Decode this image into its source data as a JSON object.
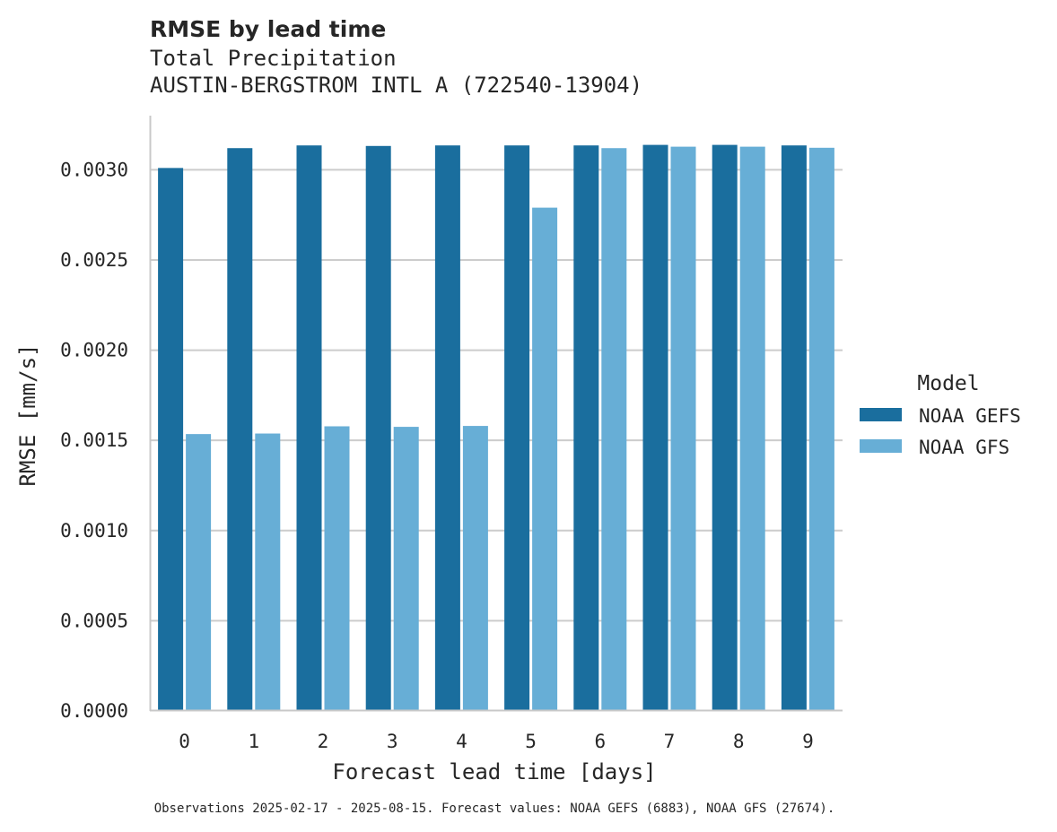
{
  "chart_data": {
    "type": "bar",
    "title": "RMSE by lead time",
    "subtitle_lines": [
      "Total Precipitation",
      "AUSTIN-BERGSTROM INTL A (722540-13904)"
    ],
    "xlabel": "Forecast lead time [days]",
    "ylabel": "RMSE [mm/s]",
    "categories": [
      "0",
      "1",
      "2",
      "3",
      "4",
      "5",
      "6",
      "7",
      "8",
      "9"
    ],
    "series": [
      {
        "name": "NOAA GEFS",
        "color": "#1a6e9e",
        "values": [
          0.00301,
          0.00312,
          0.003135,
          0.003132,
          0.003135,
          0.003135,
          0.003135,
          0.003138,
          0.003138,
          0.003135
        ]
      },
      {
        "name": "NOAA GFS",
        "color": "#67aed6",
        "values": [
          0.001535,
          0.001538,
          0.001578,
          0.001575,
          0.00158,
          0.00279,
          0.00312,
          0.003128,
          0.003128,
          0.003122
        ]
      }
    ],
    "ylim": [
      0,
      0.0033
    ],
    "yticks": [
      0.0,
      0.0005,
      0.001,
      0.0015,
      0.002,
      0.0025,
      0.003
    ],
    "ytick_labels": [
      "0.0000",
      "0.0005",
      "0.0010",
      "0.0015",
      "0.0020",
      "0.0025",
      "0.0030"
    ],
    "grid": "horizontal",
    "legend_title": "Model",
    "legend_position": "right",
    "footnote": "Observations 2025-02-17 - 2025-08-15. Forecast values: NOAA GEFS (6883), NOAA GFS (27674)."
  },
  "colors": {
    "grid": "#cccccc",
    "axis": "#c8c8c8",
    "text": "#262626"
  }
}
